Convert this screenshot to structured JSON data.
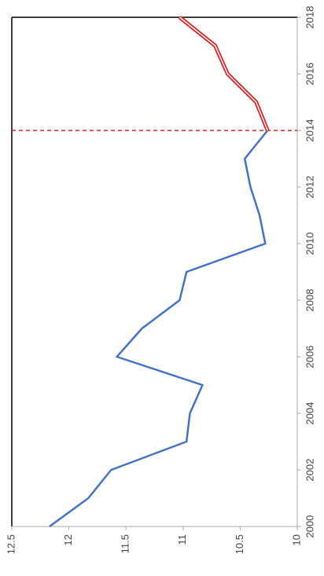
{
  "chart_data": {
    "type": "line",
    "rotation": -90,
    "x": [
      2000,
      2001,
      2002,
      2003,
      2004,
      2005,
      2006,
      2007,
      2008,
      2009,
      2010,
      2011,
      2012,
      2013,
      2014,
      2015,
      2016,
      2017,
      2018
    ],
    "series": [
      {
        "color": "#4472c4",
        "values": [
          12.17,
          11.83,
          11.63,
          10.97,
          10.94,
          10.83,
          11.58,
          11.36,
          11.03,
          10.97,
          10.28,
          10.33,
          10.41,
          10.46,
          10.26,
          null,
          null,
          null,
          null
        ]
      },
      {
        "color": "#e02020",
        "values": [
          null,
          null,
          null,
          null,
          null,
          null,
          null,
          null,
          null,
          null,
          null,
          null,
          null,
          null,
          10.26,
          10.36,
          10.61,
          10.72,
          11.03
        ]
      }
    ],
    "xlim": [
      2000,
      2018
    ],
    "xticks": [
      2000,
      2002,
      2004,
      2006,
      2008,
      2010,
      2012,
      2014,
      2016,
      2018
    ],
    "ylim": [
      10,
      12.5
    ],
    "yticks": [
      10,
      10.5,
      11,
      11.5,
      12,
      12.5
    ],
    "reference_line": {
      "x": 2014,
      "color": "#e02020"
    }
  }
}
